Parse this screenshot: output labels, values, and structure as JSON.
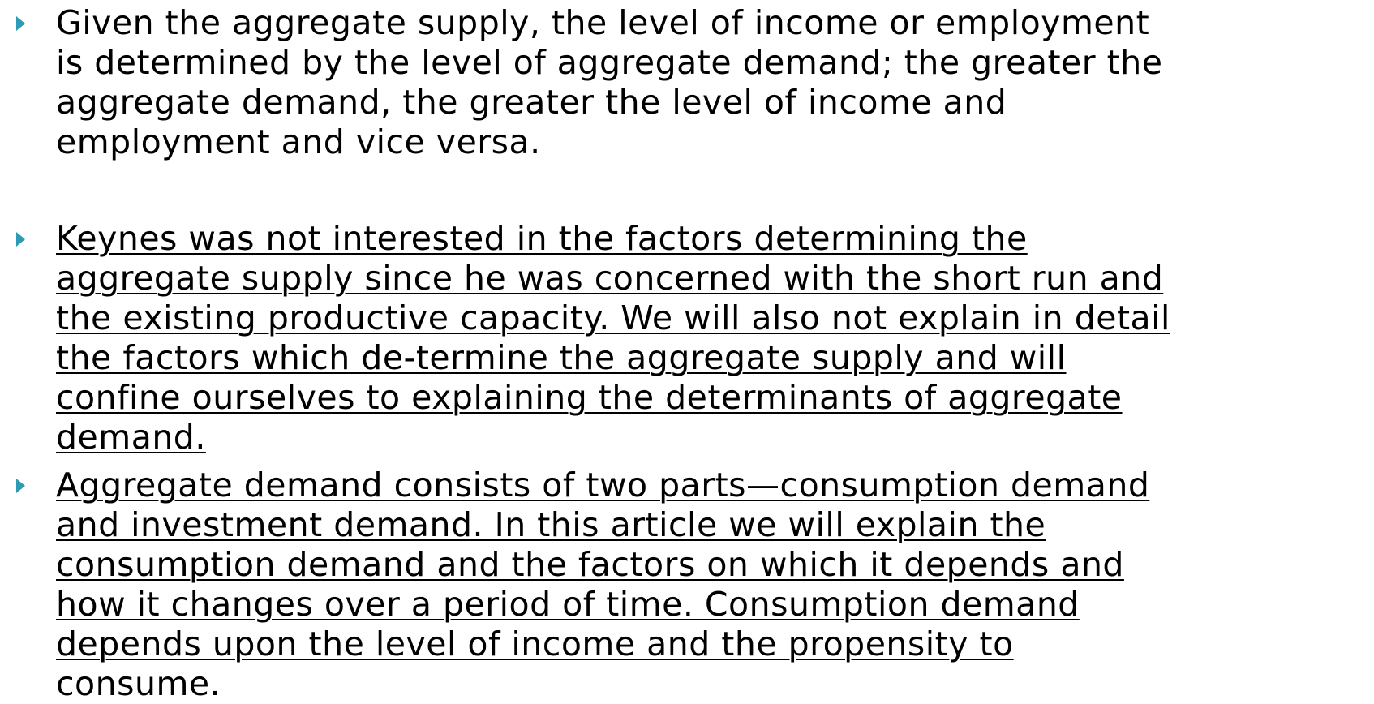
{
  "bullets": [
    {
      "lines": [
        "Given the aggregate supply, the level of income or employment",
        "is determined by the level of aggregate demand; the greater the",
        "aggregate demand, the greater the level of income and",
        "employment and vice versa."
      ]
    },
    {
      "lines": [
        "Keynes was not interested in the factors determining the",
        "aggregate supply since he was concerned with the short run and",
        "the existing productive capacity. We will also not explain in detail",
        "the factors which de-termine the aggregate supply and will",
        "confine ourselves to explaining the determinants of aggregate",
        "demand."
      ]
    },
    {
      "lines": [
        "Aggregate demand consists of two parts—consumption demand",
        "and investment demand. In this article we will explain the",
        "consumption demand and the factors on which it depends and",
        "how it changes over a period of time. Consumption demand",
        "depends upon the level of income and the propensity to",
        "consume."
      ]
    }
  ]
}
